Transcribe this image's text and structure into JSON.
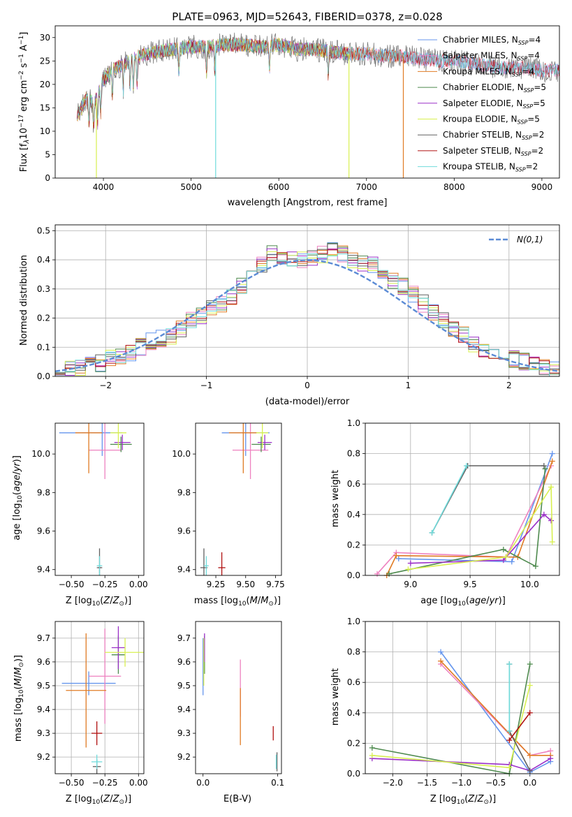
{
  "chart_data": [
    {
      "type": "line",
      "title": "PLATE=0963, MJD=52643, FIBERID=0378, z=0.028",
      "xlabel": "wavelength [Angstrom, rest frame]",
      "ylabel": "Flux [f_λ 10^-17 erg cm^-2 s^-1 A^-1]",
      "xlim": [
        3450,
        9200
      ],
      "ylim": [
        0,
        32.5
      ],
      "xticks": [
        4000,
        5000,
        6000,
        7000,
        8000,
        9000
      ],
      "yticks": [
        0,
        5,
        10,
        15,
        20,
        25,
        30
      ],
      "grid": false,
      "legend_position": "top-right",
      "legend_colors": [
        "#6495ed",
        "#ee82c0",
        "#e07b24",
        "#4e8a4e",
        "#9b30c8",
        "#d8f050",
        "#606060",
        "#b01010",
        "#70dcdc"
      ],
      "legend": [
        {
          "name": "Chabrier MILES",
          "n": "4"
        },
        {
          "name": "Salpeter MILES",
          "n": "4"
        },
        {
          "name": "Kroupa MILES",
          "n": "4"
        },
        {
          "name": "Chabrier ELODIE",
          "n": "5"
        },
        {
          "name": "Salpeter ELODIE",
          "n": "5"
        },
        {
          "name": "Kroupa ELODIE",
          "n": "5"
        },
        {
          "name": "Chabrier STELIB",
          "n": "2"
        },
        {
          "name": "Salpeter STELIB",
          "n": "2"
        },
        {
          "name": "Kroupa STELIB",
          "n": "2"
        }
      ],
      "spectrum_trend": {
        "x": [
          3700,
          3800,
          3900,
          4000,
          4100,
          4200,
          4400,
          4600,
          4800,
          5000,
          5200,
          5400,
          5600,
          5800,
          6000,
          6200,
          6400,
          6600,
          6800,
          7000,
          7200,
          7400,
          7600,
          7800,
          8000,
          8200,
          8400,
          8600,
          8800,
          9000,
          9200
        ],
        "y": [
          13,
          17,
          16,
          21,
          23,
          24,
          26,
          27,
          27.5,
          28,
          28,
          28.5,
          28.5,
          28,
          28.5,
          27.5,
          27.5,
          27,
          26.5,
          26.5,
          26,
          26,
          25.5,
          25,
          25,
          24.5,
          24,
          23.5,
          23.5,
          23,
          23
        ]
      },
      "drops": [
        {
          "x": 3920,
          "to": 0,
          "series": "Kroupa ELODIE"
        },
        {
          "x": 5280,
          "to": 0,
          "series": "Kroupa STELIB"
        },
        {
          "x": 6800,
          "to": 0,
          "series": "Kroupa ELODIE"
        },
        {
          "x": 7420,
          "to": 0,
          "series": "Kroupa MILES"
        }
      ]
    },
    {
      "type": "step",
      "xlabel": "(data-model)/error",
      "ylabel": "Normed distribution",
      "xlim": [
        -2.5,
        2.5
      ],
      "ylim": [
        0,
        0.52
      ],
      "xticks": [
        -2,
        -1,
        0,
        1,
        2
      ],
      "yticks": [
        0.0,
        0.1,
        0.2,
        0.3,
        0.4,
        0.5
      ],
      "grid": true,
      "legend_position": "top-right",
      "reference_curve": {
        "name": "N(0,1)",
        "mu": 0,
        "sigma": 1,
        "color": "#5b8bd5"
      },
      "bin_edges_start": -2.5,
      "bin_width": 0.1,
      "base_histogram": [
        0.02,
        0.025,
        0.03,
        0.04,
        0.045,
        0.06,
        0.07,
        0.08,
        0.1,
        0.12,
        0.13,
        0.14,
        0.16,
        0.19,
        0.21,
        0.23,
        0.25,
        0.275,
        0.31,
        0.34,
        0.38,
        0.42,
        0.41,
        0.4,
        0.4,
        0.41,
        0.42,
        0.43,
        0.42,
        0.4,
        0.39,
        0.38,
        0.36,
        0.33,
        0.31,
        0.28,
        0.25,
        0.22,
        0.19,
        0.16,
        0.14,
        0.11,
        0.09,
        0.08,
        0.07,
        0.06,
        0.05,
        0.04,
        0.03,
        0.02
      ],
      "series_colors": [
        "#6495ed",
        "#ee82c0",
        "#e07b24",
        "#4e8a4e",
        "#9b30c8",
        "#d8f050",
        "#606060",
        "#b01010",
        "#70dcdc"
      ]
    },
    {
      "type": "scatter",
      "xlabel": "Z [log10(Z/Z⊙)]",
      "ylabel": "age  [log10(age/yr)]",
      "xlim": [
        -0.62,
        0.04
      ],
      "ylim": [
        9.37,
        10.16
      ],
      "xticks": [
        -0.5,
        -0.25,
        0.0
      ],
      "yticks": [
        9.4,
        9.6,
        9.8,
        10.0
      ],
      "grid": false,
      "points": [
        {
          "x": -0.37,
          "y": 10.11,
          "xerr": 0.22,
          "yerr": 0.0,
          "color": "#6495ed"
        },
        {
          "x": -0.27,
          "y": 10.11,
          "xerr": 0.15,
          "yerr": 0.12,
          "color": "#6495ed"
        },
        {
          "x": -0.25,
          "y": 10.02,
          "xerr": 0.12,
          "yerr": 0.15,
          "color": "#ee82c0"
        },
        {
          "x": -0.37,
          "y": 10.11,
          "xerr": 0.1,
          "yerr": 0.21,
          "color": "#e07b24"
        },
        {
          "x": -0.13,
          "y": 10.05,
          "xerr": 0.08,
          "yerr": 0.04,
          "color": "#4e8a4e"
        },
        {
          "x": -0.12,
          "y": 10.06,
          "xerr": 0.06,
          "yerr": 0.04,
          "color": "#9b30c8"
        },
        {
          "x": -0.15,
          "y": 10.11,
          "xerr": 0.06,
          "yerr": 0.08,
          "color": "#d8f050"
        },
        {
          "x": -0.29,
          "y": 9.41,
          "xerr": 0.01,
          "yerr": 0.0,
          "color": "#b01010"
        },
        {
          "x": -0.29,
          "y": 9.41,
          "xerr": 0.02,
          "yerr": 0.1,
          "color": "#606060"
        },
        {
          "x": -0.29,
          "y": 9.42,
          "xerr": 0.02,
          "yerr": 0.05,
          "color": "#70dcdc"
        }
      ]
    },
    {
      "type": "scatter",
      "xlabel": "mass [log10(M/M⊙)]",
      "ylabel": "",
      "xlim": [
        9.08,
        9.8
      ],
      "ylim": [
        9.37,
        10.16
      ],
      "xticks": [
        9.25,
        9.5,
        9.75
      ],
      "yticks": [
        9.4,
        9.6,
        9.8,
        10.0
      ],
      "grid": false,
      "points": [
        {
          "x": 9.5,
          "y": 10.11,
          "xerr": 0.2,
          "yerr": 0.0,
          "color": "#6495ed"
        },
        {
          "x": 9.5,
          "y": 10.11,
          "xerr": 0.0,
          "yerr": 0.12,
          "color": "#6495ed"
        },
        {
          "x": 9.54,
          "y": 10.02,
          "xerr": 0.15,
          "yerr": 0.15,
          "color": "#ee82c0"
        },
        {
          "x": 9.48,
          "y": 10.11,
          "xerr": 0.12,
          "yerr": 0.21,
          "color": "#e07b24"
        },
        {
          "x": 9.63,
          "y": 10.05,
          "xerr": 0.08,
          "yerr": 0.04,
          "color": "#4e8a4e"
        },
        {
          "x": 9.66,
          "y": 10.06,
          "xerr": 0.06,
          "yerr": 0.04,
          "color": "#9b30c8"
        },
        {
          "x": 9.64,
          "y": 10.11,
          "xerr": 0.05,
          "yerr": 0.08,
          "color": "#d8f050"
        },
        {
          "x": 9.3,
          "y": 9.41,
          "xerr": 0.03,
          "yerr": 0.08,
          "color": "#b01010"
        },
        {
          "x": 9.15,
          "y": 9.41,
          "xerr": 0.03,
          "yerr": 0.1,
          "color": "#606060"
        },
        {
          "x": 9.17,
          "y": 9.42,
          "xerr": 0.02,
          "yerr": 0.05,
          "color": "#70dcdc"
        }
      ]
    },
    {
      "type": "line",
      "xlabel": "age  [log10(age/yr)]",
      "ylabel": "mass weight",
      "xlim": [
        8.62,
        10.25
      ],
      "ylim": [
        0,
        1.0
      ],
      "xticks": [
        9.0,
        9.5,
        10.0
      ],
      "yticks": [
        0.0,
        0.2,
        0.4,
        0.6,
        0.8,
        1.0
      ],
      "grid": true,
      "series": [
        {
          "name": "Chabrier MILES",
          "color": "#6495ed",
          "x": [
            8.9,
            9.85,
            10.19
          ],
          "y": [
            0.11,
            0.09,
            0.8
          ]
        },
        {
          "name": "Salpeter MILES",
          "color": "#ee82c0",
          "x": [
            8.72,
            8.88,
            9.8,
            10.18
          ],
          "y": [
            0.01,
            0.15,
            0.12,
            0.72
          ]
        },
        {
          "name": "Kroupa MILES",
          "color": "#e07b24",
          "x": [
            8.8,
            8.88,
            9.9,
            10.19
          ],
          "y": [
            0.0,
            0.13,
            0.12,
            0.75
          ]
        },
        {
          "name": "Chabrier ELODIE",
          "color": "#4e8a4e",
          "x": [
            8.82,
            9.78,
            10.05,
            10.13
          ],
          "y": [
            0.01,
            0.17,
            0.06,
            0.7
          ]
        },
        {
          "name": "Salpeter ELODIE",
          "color": "#9b30c8",
          "x": [
            9.0,
            9.78,
            10.12,
            10.18
          ],
          "y": [
            0.08,
            0.1,
            0.4,
            0.36
          ]
        },
        {
          "name": "Kroupa ELODIE",
          "color": "#d8f050",
          "x": [
            8.98,
            9.8,
            10.18,
            10.19
          ],
          "y": [
            0.04,
            0.12,
            0.58,
            0.22
          ]
        },
        {
          "name": "Chabrier STELIB",
          "color": "#606060",
          "x": [
            9.18,
            9.48,
            10.12
          ],
          "y": [
            0.28,
            0.72,
            0.72
          ]
        },
        {
          "name": "Kroupa STELIB",
          "color": "#70dcdc",
          "x": [
            9.18,
            9.47
          ],
          "y": [
            0.28,
            0.72
          ]
        }
      ]
    },
    {
      "type": "scatter",
      "xlabel": "Z [log10(Z/Z⊙)]",
      "ylabel": "mass [log10(M/M⊙)]",
      "xlim": [
        -0.62,
        0.04
      ],
      "ylim": [
        9.13,
        9.77
      ],
      "xticks": [
        -0.5,
        -0.25,
        0.0
      ],
      "yticks": [
        9.2,
        9.3,
        9.4,
        9.5,
        9.6,
        9.7
      ],
      "grid": true,
      "points": [
        {
          "x": -0.37,
          "y": 9.51,
          "xerr": 0.2,
          "yerr": 0.05,
          "color": "#6495ed"
        },
        {
          "x": -0.25,
          "y": 9.54,
          "xerr": 0.12,
          "yerr": 0.2,
          "color": "#ee82c0"
        },
        {
          "x": -0.39,
          "y": 9.48,
          "xerr": 0.15,
          "yerr": 0.24,
          "color": "#e07b24"
        },
        {
          "x": -0.15,
          "y": 9.63,
          "xerr": 0.05,
          "yerr": 0.08,
          "color": "#4e8a4e"
        },
        {
          "x": -0.15,
          "y": 9.66,
          "xerr": 0.05,
          "yerr": 0.09,
          "color": "#9b30c8"
        },
        {
          "x": -0.1,
          "y": 9.64,
          "xerr": 0.15,
          "yerr": 0.06,
          "color": "#d8f050"
        },
        {
          "x": -0.31,
          "y": 9.3,
          "xerr": 0.04,
          "yerr": 0.05,
          "color": "#b01010"
        },
        {
          "x": -0.31,
          "y": 9.16,
          "xerr": 0.03,
          "yerr": 0.03,
          "color": "#606060"
        },
        {
          "x": -0.31,
          "y": 9.18,
          "xerr": 0.04,
          "yerr": 0.03,
          "color": "#70dcdc"
        }
      ]
    },
    {
      "type": "scatter",
      "xlabel": "E(B-V)",
      "ylabel": "",
      "xlim": [
        -0.01,
        0.105
      ],
      "ylim": [
        9.13,
        9.77
      ],
      "xticks": [
        0.0,
        0.1
      ],
      "yticks": [
        9.2,
        9.3,
        9.4,
        9.5,
        9.6,
        9.7
      ],
      "grid": false,
      "points": [
        {
          "x": 0.0,
          "y": 9.58,
          "xerr": 0,
          "yerr": 0.12,
          "color": "#6495ed"
        },
        {
          "x": 0.05,
          "y": 9.49,
          "xerr": 0,
          "yerr": 0.12,
          "color": "#ee82c0"
        },
        {
          "x": 0.05,
          "y": 9.37,
          "xerr": 0,
          "yerr": 0.12,
          "color": "#e07b24"
        },
        {
          "x": 0.002,
          "y": 9.63,
          "xerr": 0,
          "yerr": 0.08,
          "color": "#4e8a4e"
        },
        {
          "x": 0.002,
          "y": 9.66,
          "xerr": 0,
          "yerr": 0.06,
          "color": "#9b30c8"
        },
        {
          "x": 0.001,
          "y": 9.6,
          "xerr": 0,
          "yerr": 0.1,
          "color": "#d8f050"
        },
        {
          "x": 0.094,
          "y": 9.3,
          "xerr": 0,
          "yerr": 0.03,
          "color": "#b01010"
        },
        {
          "x": 0.099,
          "y": 9.18,
          "xerr": 0,
          "yerr": 0.04,
          "color": "#606060"
        },
        {
          "x": 0.098,
          "y": 9.18,
          "xerr": 0,
          "yerr": 0.03,
          "color": "#70dcdc"
        }
      ]
    },
    {
      "type": "line",
      "xlabel": "Z [log10(Z/Z⊙)]",
      "ylabel": "mass weight",
      "xlim": [
        -2.4,
        0.43
      ],
      "ylim": [
        0,
        1.0
      ],
      "xticks": [
        -2.0,
        -1.5,
        -1.0,
        -0.5,
        0.0
      ],
      "yticks": [
        0.0,
        0.2,
        0.4,
        0.6,
        0.8,
        1.0
      ],
      "grid": true,
      "series": [
        {
          "name": "Chabrier MILES",
          "color": "#6495ed",
          "x": [
            -1.3,
            0.0,
            0.3
          ],
          "y": [
            0.8,
            0.01,
            0.08
          ]
        },
        {
          "name": "Salpeter MILES",
          "color": "#ee82c0",
          "x": [
            -1.3,
            0.0,
            0.3
          ],
          "y": [
            0.72,
            0.12,
            0.15
          ]
        },
        {
          "name": "Kroupa MILES",
          "color": "#e07b24",
          "x": [
            -1.3,
            0.0,
            0.3
          ],
          "y": [
            0.74,
            0.12,
            0.12
          ]
        },
        {
          "name": "Chabrier ELODIE",
          "color": "#4e8a4e",
          "x": [
            -2.3,
            -0.3,
            0.0
          ],
          "y": [
            0.17,
            0.0,
            0.72
          ]
        },
        {
          "name": "Salpeter ELODIE",
          "color": "#9b30c8",
          "x": [
            -2.3,
            -0.3,
            0.0,
            0.3
          ],
          "y": [
            0.1,
            0.06,
            0.02,
            0.1
          ]
        },
        {
          "name": "Kroupa ELODIE",
          "color": "#d8f050",
          "x": [
            -2.3,
            -0.3,
            0.0
          ],
          "y": [
            0.12,
            0.04,
            0.58
          ]
        },
        {
          "name": "Chabrier STELIB",
          "color": "#606060",
          "x": [
            -0.3,
            -0.3,
            0.0
          ],
          "y": [
            0.72,
            0.28,
            0.02
          ]
        },
        {
          "name": "Salpeter STELIB",
          "color": "#b01010",
          "x": [
            -0.3,
            0.0
          ],
          "y": [
            0.22,
            0.4
          ]
        },
        {
          "name": "Kroupa STELIB",
          "color": "#70dcdc",
          "x": [
            -0.3,
            -0.3
          ],
          "y": [
            0.72,
            0.28
          ]
        }
      ]
    }
  ]
}
